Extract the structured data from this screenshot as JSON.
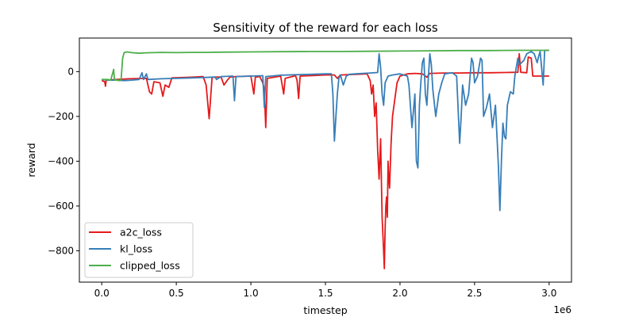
{
  "chart_data": {
    "type": "line",
    "title": "Sensitivity of the reward for each loss",
    "xlabel": "timestep",
    "ylabel": "reward",
    "x_offset_label": "1e6",
    "xlim": [
      -150000,
      3150000
    ],
    "ylim": [
      -940,
      150
    ],
    "xticks": [
      0,
      500000,
      1000000,
      1500000,
      2000000,
      2500000,
      3000000
    ],
    "xtick_labels": [
      "0.0",
      "0.5",
      "1.0",
      "1.5",
      "2.0",
      "2.5",
      "3.0"
    ],
    "yticks": [
      0,
      -200,
      -400,
      -600,
      -800
    ],
    "ytick_labels": [
      "0",
      "−200",
      "−400",
      "−600",
      "−800"
    ],
    "grid": false,
    "legend_position": "lower-left",
    "series": [
      {
        "name": "a2c_loss",
        "color": "#e41a1c",
        "points": [
          [
            0,
            -40
          ],
          [
            20000,
            -45
          ],
          [
            25000,
            -65
          ],
          [
            30000,
            -38
          ],
          [
            100000,
            -35
          ],
          [
            180000,
            -32
          ],
          [
            300000,
            -30
          ],
          [
            320000,
            -90
          ],
          [
            335000,
            -100
          ],
          [
            350000,
            -45
          ],
          [
            390000,
            -50
          ],
          [
            410000,
            -110
          ],
          [
            425000,
            -60
          ],
          [
            450000,
            -70
          ],
          [
            470000,
            -28
          ],
          [
            600000,
            -25
          ],
          [
            680000,
            -22
          ],
          [
            700000,
            -60
          ],
          [
            720000,
            -210
          ],
          [
            740000,
            -25
          ],
          [
            800000,
            -24
          ],
          [
            820000,
            -60
          ],
          [
            840000,
            -40
          ],
          [
            860000,
            -24
          ],
          [
            900000,
            -22
          ],
          [
            1000000,
            -20
          ],
          [
            1020000,
            -100
          ],
          [
            1030000,
            -25
          ],
          [
            1060000,
            -22
          ],
          [
            1080000,
            -50
          ],
          [
            1090000,
            -80
          ],
          [
            1100000,
            -250
          ],
          [
            1110000,
            -30
          ],
          [
            1200000,
            -20
          ],
          [
            1220000,
            -100
          ],
          [
            1230000,
            -30
          ],
          [
            1300000,
            -18
          ],
          [
            1310000,
            -40
          ],
          [
            1320000,
            -120
          ],
          [
            1330000,
            -20
          ],
          [
            1400000,
            -18
          ],
          [
            1500000,
            -15
          ],
          [
            1560000,
            -15
          ],
          [
            1580000,
            -30
          ],
          [
            1600000,
            -15
          ],
          [
            1700000,
            -12
          ],
          [
            1780000,
            -10
          ],
          [
            1800000,
            -40
          ],
          [
            1810000,
            -100
          ],
          [
            1820000,
            -60
          ],
          [
            1830000,
            -200
          ],
          [
            1840000,
            -140
          ],
          [
            1850000,
            -350
          ],
          [
            1860000,
            -480
          ],
          [
            1870000,
            -300
          ],
          [
            1880000,
            -650
          ],
          [
            1890000,
            -800
          ],
          [
            1895000,
            -880
          ],
          [
            1900000,
            -700
          ],
          [
            1905000,
            -600
          ],
          [
            1910000,
            -560
          ],
          [
            1915000,
            -650
          ],
          [
            1920000,
            -400
          ],
          [
            1925000,
            -470
          ],
          [
            1930000,
            -520
          ],
          [
            1940000,
            -320
          ],
          [
            1950000,
            -200
          ],
          [
            1960000,
            -150
          ],
          [
            1970000,
            -100
          ],
          [
            1980000,
            -50
          ],
          [
            2000000,
            -20
          ],
          [
            2050000,
            -10
          ],
          [
            2100000,
            -8
          ],
          [
            2150000,
            -10
          ],
          [
            2180000,
            -25
          ],
          [
            2200000,
            -8
          ],
          [
            2300000,
            -6
          ],
          [
            2400000,
            -6
          ],
          [
            2500000,
            -5
          ],
          [
            2600000,
            -5
          ],
          [
            2700000,
            -4
          ],
          [
            2790000,
            -3
          ],
          [
            2800000,
            80
          ],
          [
            2810000,
            -3
          ],
          [
            2850000,
            -5
          ],
          [
            2860000,
            65
          ],
          [
            2880000,
            60
          ],
          [
            2890000,
            -20
          ],
          [
            2950000,
            -20
          ],
          [
            3000000,
            -20
          ]
        ]
      },
      {
        "name": "kl_loss",
        "color": "#377eb8",
        "points": [
          [
            0,
            -35
          ],
          [
            50000,
            -38
          ],
          [
            100000,
            -38
          ],
          [
            150000,
            -40
          ],
          [
            200000,
            -38
          ],
          [
            250000,
            -35
          ],
          [
            270000,
            -5
          ],
          [
            280000,
            -35
          ],
          [
            300000,
            -10
          ],
          [
            310000,
            -35
          ],
          [
            400000,
            -32
          ],
          [
            500000,
            -30
          ],
          [
            600000,
            -28
          ],
          [
            700000,
            -26
          ],
          [
            760000,
            -24
          ],
          [
            770000,
            -35
          ],
          [
            800000,
            -22
          ],
          [
            880000,
            -20
          ],
          [
            890000,
            -130
          ],
          [
            900000,
            -22
          ],
          [
            1000000,
            -20
          ],
          [
            1080000,
            -18
          ],
          [
            1090000,
            -160
          ],
          [
            1100000,
            -22
          ],
          [
            1200000,
            -16
          ],
          [
            1300000,
            -14
          ],
          [
            1400000,
            -12
          ],
          [
            1500000,
            -10
          ],
          [
            1540000,
            -10
          ],
          [
            1550000,
            -100
          ],
          [
            1560000,
            -310
          ],
          [
            1570000,
            -200
          ],
          [
            1580000,
            -100
          ],
          [
            1590000,
            -30
          ],
          [
            1600000,
            -15
          ],
          [
            1620000,
            -60
          ],
          [
            1640000,
            -20
          ],
          [
            1660000,
            -12
          ],
          [
            1700000,
            -10
          ],
          [
            1750000,
            -8
          ],
          [
            1800000,
            -6
          ],
          [
            1850000,
            -4
          ],
          [
            1860000,
            80
          ],
          [
            1870000,
            20
          ],
          [
            1880000,
            -100
          ],
          [
            1890000,
            -150
          ],
          [
            1900000,
            -50
          ],
          [
            1920000,
            -20
          ],
          [
            1950000,
            -15
          ],
          [
            2000000,
            -10
          ],
          [
            2050000,
            -20
          ],
          [
            2060000,
            -60
          ],
          [
            2080000,
            -250
          ],
          [
            2100000,
            -100
          ],
          [
            2110000,
            -400
          ],
          [
            2120000,
            -430
          ],
          [
            2130000,
            -150
          ],
          [
            2140000,
            -50
          ],
          [
            2150000,
            40
          ],
          [
            2160000,
            60
          ],
          [
            2170000,
            -100
          ],
          [
            2180000,
            -150
          ],
          [
            2190000,
            -30
          ],
          [
            2200000,
            80
          ],
          [
            2210000,
            30
          ],
          [
            2220000,
            -80
          ],
          [
            2240000,
            -200
          ],
          [
            2260000,
            -100
          ],
          [
            2280000,
            -50
          ],
          [
            2300000,
            -10
          ],
          [
            2350000,
            -5
          ],
          [
            2380000,
            -20
          ],
          [
            2400000,
            -320
          ],
          [
            2410000,
            -200
          ],
          [
            2420000,
            -60
          ],
          [
            2440000,
            -150
          ],
          [
            2460000,
            -100
          ],
          [
            2480000,
            60
          ],
          [
            2490000,
            40
          ],
          [
            2500000,
            -50
          ],
          [
            2520000,
            -20
          ],
          [
            2540000,
            60
          ],
          [
            2550000,
            50
          ],
          [
            2560000,
            -200
          ],
          [
            2580000,
            -160
          ],
          [
            2600000,
            -100
          ],
          [
            2620000,
            -250
          ],
          [
            2640000,
            -150
          ],
          [
            2660000,
            -420
          ],
          [
            2670000,
            -620
          ],
          [
            2680000,
            -400
          ],
          [
            2690000,
            -230
          ],
          [
            2700000,
            -290
          ],
          [
            2710000,
            -300
          ],
          [
            2720000,
            -150
          ],
          [
            2740000,
            -90
          ],
          [
            2760000,
            -100
          ],
          [
            2770000,
            -20
          ],
          [
            2780000,
            20
          ],
          [
            2790000,
            60
          ],
          [
            2800000,
            30
          ],
          [
            2830000,
            50
          ],
          [
            2850000,
            80
          ],
          [
            2880000,
            90
          ],
          [
            2900000,
            80
          ],
          [
            2920000,
            40
          ],
          [
            2930000,
            70
          ],
          [
            2940000,
            90
          ],
          [
            2960000,
            -60
          ],
          [
            2970000,
            95
          ],
          [
            3000000,
            95
          ]
        ]
      },
      {
        "name": "clipped_loss",
        "color": "#4daf4a",
        "points": [
          [
            0,
            -35
          ],
          [
            40000,
            -35
          ],
          [
            60000,
            -38
          ],
          [
            80000,
            10
          ],
          [
            85000,
            -38
          ],
          [
            100000,
            -38
          ],
          [
            120000,
            -40
          ],
          [
            130000,
            -35
          ],
          [
            140000,
            60
          ],
          [
            150000,
            85
          ],
          [
            170000,
            88
          ],
          [
            200000,
            85
          ],
          [
            250000,
            82
          ],
          [
            300000,
            84
          ],
          [
            400000,
            86
          ],
          [
            500000,
            85
          ],
          [
            600000,
            86
          ],
          [
            700000,
            86
          ],
          [
            800000,
            87
          ],
          [
            1000000,
            88
          ],
          [
            1200000,
            89
          ],
          [
            1400000,
            90
          ],
          [
            1600000,
            90
          ],
          [
            1800000,
            91
          ],
          [
            2000000,
            92
          ],
          [
            2200000,
            93
          ],
          [
            2400000,
            94
          ],
          [
            2600000,
            94
          ],
          [
            2800000,
            95
          ],
          [
            3000000,
            95
          ]
        ]
      }
    ]
  }
}
